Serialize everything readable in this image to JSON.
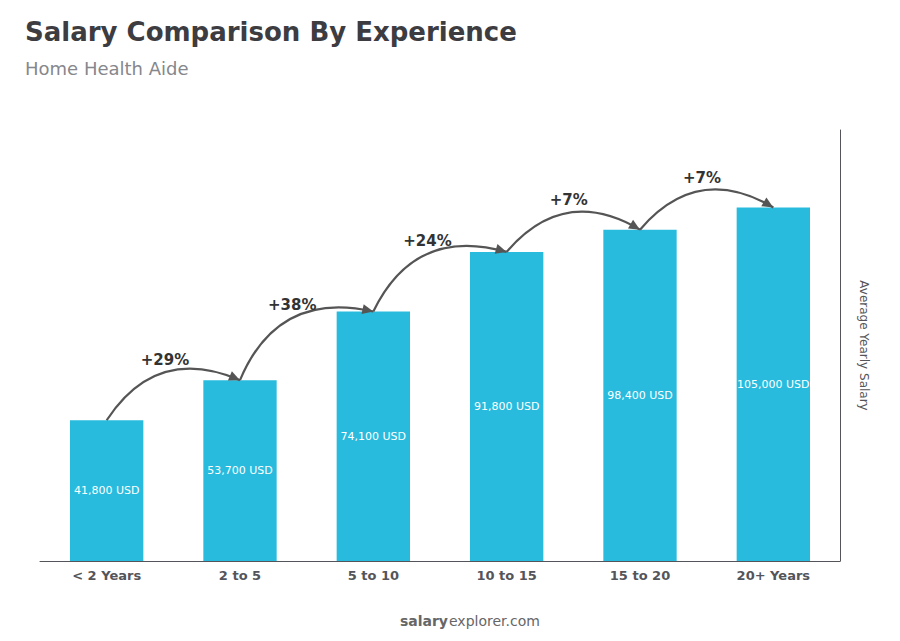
{
  "chart_data": {
    "type": "bar",
    "title": "Salary Comparison By Experience",
    "subtitle": "Home Health Aide",
    "ylabel": "Average Yearly Salary",
    "categories": [
      "< 2 Years",
      "2 to 5",
      "5 to 10",
      "10 to 15",
      "15 to 20",
      "20+ Years"
    ],
    "values": [
      41800,
      53700,
      74100,
      91800,
      98400,
      105000
    ],
    "value_labels": [
      "41,800 USD",
      "53,700 USD",
      "74,100 USD",
      "91,800 USD",
      "98,400 USD",
      "105,000 USD"
    ],
    "data_labels": true,
    "color": "#29BBDD",
    "ylim": [
      0,
      128000
    ],
    "tick_labels": "x",
    "grid": false,
    "annotations": [
      "+29%",
      "+38%",
      "+24%",
      "+7%",
      "+7%"
    ],
    "watermark": [
      "salary",
      "explorer.com"
    ]
  }
}
